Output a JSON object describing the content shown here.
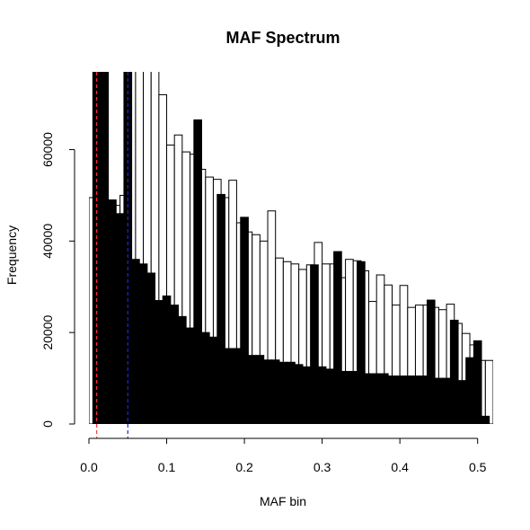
{
  "chart_data": {
    "type": "bar",
    "title": "MAF Spectrum",
    "xlabel": "MAF bin",
    "ylabel": "Frequency",
    "xlim": [
      0,
      0.52
    ],
    "ylim": [
      0,
      77000
    ],
    "x_ticks": [
      0.0,
      0.1,
      0.2,
      0.3,
      0.4,
      0.5
    ],
    "x_tick_labels": [
      "0.0",
      "0.1",
      "0.2",
      "0.3",
      "0.4",
      "0.5"
    ],
    "y_ticks": [
      0,
      20000,
      40000,
      60000
    ],
    "y_tick_labels": [
      "0",
      "20000",
      "40000",
      "60000"
    ],
    "colors": {
      "black_bar": "#000000",
      "white_bar": "#ffffff",
      "bar_outline": "#000000",
      "red_line": "#ff3333",
      "blue_line": "#2222dd"
    },
    "series": [
      {
        "fill": "white",
        "bin_width": 0.01,
        "x_start": [
          0.0,
          0.01,
          0.02,
          0.03,
          0.04,
          0.05,
          0.06,
          0.07,
          0.08,
          0.09,
          0.1,
          0.11,
          0.12,
          0.13,
          0.14,
          0.15,
          0.16,
          0.17,
          0.18,
          0.19,
          0.2,
          0.21,
          0.22,
          0.23,
          0.24,
          0.25,
          0.26,
          0.27,
          0.28,
          0.29,
          0.3,
          0.31,
          0.32,
          0.33,
          0.34,
          0.35,
          0.36,
          0.37,
          0.38,
          0.39,
          0.4,
          0.41,
          0.42,
          0.43,
          0.44,
          0.45,
          0.46,
          0.47,
          0.48,
          0.49,
          0.5,
          0.51
        ],
        "values": [
          49500,
          53500,
          48000,
          47800,
          50000,
          120000,
          120000,
          120000,
          110000,
          72000,
          61000,
          63200,
          59500,
          59000,
          55700,
          54000,
          53500,
          49500,
          53300,
          44000,
          42000,
          41400,
          40000,
          46600,
          36300,
          35500,
          35000,
          33800,
          34800,
          39700,
          35000,
          35000,
          32000,
          36000,
          35700,
          33500,
          26800,
          32600,
          30400,
          26000,
          30300,
          25500,
          26000,
          26000,
          25500,
          25000,
          26200,
          22000,
          19800,
          17300,
          13900,
          13900
        ]
      },
      {
        "fill": "black",
        "bin_width": 0.01,
        "x_start": [
          0.005,
          0.015,
          0.025,
          0.035,
          0.045,
          0.055,
          0.065,
          0.075,
          0.085,
          0.095,
          0.105,
          0.115,
          0.125,
          0.135,
          0.145,
          0.155,
          0.165,
          0.175,
          0.185,
          0.195,
          0.205,
          0.215,
          0.225,
          0.235,
          0.245,
          0.255,
          0.265,
          0.275,
          0.285,
          0.295,
          0.305,
          0.315,
          0.325,
          0.335,
          0.345,
          0.355,
          0.365,
          0.375,
          0.385,
          0.395,
          0.405,
          0.415,
          0.425,
          0.435,
          0.445,
          0.455,
          0.465,
          0.475,
          0.485,
          0.495,
          0.505
        ],
        "values": [
          250000,
          250000,
          49000,
          46000,
          250000,
          36000,
          35000,
          33000,
          27000,
          28000,
          26000,
          23500,
          21000,
          66500,
          20000,
          19000,
          50200,
          16500,
          16500,
          45200,
          15000,
          15000,
          14000,
          14000,
          13500,
          13500,
          13000,
          12500,
          34800,
          12500,
          12000,
          37700,
          11500,
          11500,
          35500,
          11000,
          11000,
          11000,
          10500,
          10500,
          10500,
          10500,
          10500,
          27100,
          10000,
          10000,
          22700,
          9500,
          14500,
          18200,
          1700
        ]
      }
    ],
    "reference_lines": [
      {
        "x": 0.01,
        "color": "red",
        "style": "dashed"
      },
      {
        "x": 0.05,
        "color": "blue",
        "style": "dashed"
      }
    ]
  }
}
